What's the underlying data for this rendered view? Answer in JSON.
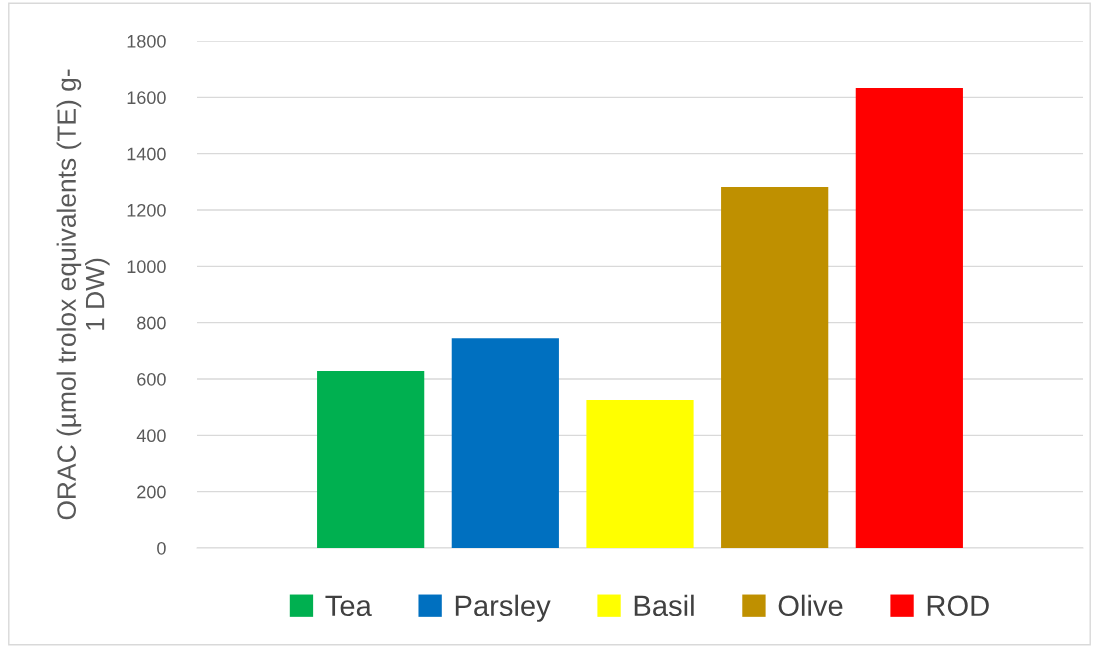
{
  "chart_data": {
    "type": "bar",
    "ylabel": "ORAC (µmol trolox equivalents (TE) g-\n1 DW)",
    "categories": [
      null
    ],
    "series": [
      {
        "name": "Tea",
        "color": "#00b050",
        "values": [
          628
        ]
      },
      {
        "name": "Parsley",
        "color": "#0070c0",
        "values": [
          745
        ]
      },
      {
        "name": "Basil",
        "color": "#ffff00",
        "values": [
          525
        ]
      },
      {
        "name": "Olive",
        "color": "#bf9000",
        "values": [
          1282
        ]
      },
      {
        "name": "ROD",
        "color": "#ff0000",
        "values": [
          1633
        ]
      }
    ],
    "ylim": [
      0,
      1800
    ],
    "yticks": [
      0,
      200,
      400,
      600,
      800,
      1000,
      1200,
      1400,
      1600,
      1800
    ],
    "grid": "y",
    "legend": "bottom",
    "tick_labels": "y"
  }
}
